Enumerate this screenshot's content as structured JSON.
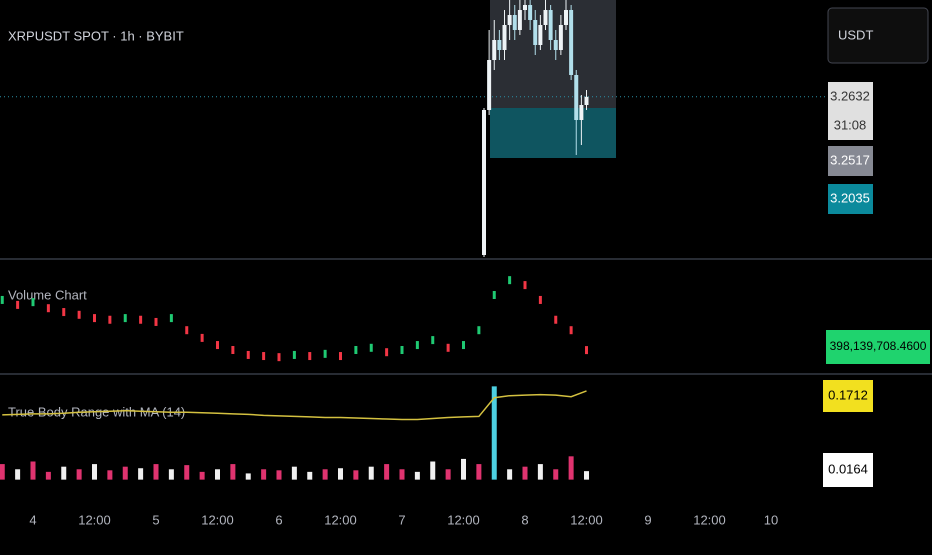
{
  "header": {
    "symbol": "XRPUSDT SPOT · 1h · BYBIT",
    "currency_button": "USDT"
  },
  "price_pane": {
    "ylim": [
      3.102,
      3.36
    ],
    "last_price": 3.2632,
    "countdown": "31:08",
    "price_labels": [
      3.2517,
      3.2035
    ],
    "candles": {
      "open": [
        3.105,
        3.25,
        3.3,
        3.32,
        3.31,
        3.335,
        3.345,
        3.33,
        3.35,
        3.355,
        3.34,
        3.315,
        3.335,
        3.35,
        3.32,
        3.31,
        3.335,
        3.35,
        3.285,
        3.24,
        3.255
      ],
      "high": [
        3.252,
        3.33,
        3.34,
        3.33,
        3.35,
        3.36,
        3.355,
        3.36,
        3.36,
        3.36,
        3.35,
        3.345,
        3.36,
        3.355,
        3.33,
        3.345,
        3.36,
        3.355,
        3.29,
        3.265,
        3.27
      ],
      "low": [
        3.103,
        3.245,
        3.29,
        3.3,
        3.3,
        3.32,
        3.32,
        3.325,
        3.34,
        3.33,
        3.305,
        3.31,
        3.33,
        3.31,
        3.3,
        3.305,
        3.33,
        3.28,
        3.205,
        3.215,
        3.25
      ],
      "close": [
        3.25,
        3.3,
        3.32,
        3.31,
        3.335,
        3.345,
        3.33,
        3.35,
        3.355,
        3.34,
        3.315,
        3.335,
        3.35,
        3.32,
        3.31,
        3.335,
        3.35,
        3.285,
        3.24,
        3.255,
        3.2632
      ]
    },
    "up_color": "#eef3f6",
    "down_color": "#b2dfeb"
  },
  "volume_pane": {
    "title": "Volume Chart",
    "ylim": [
      0,
      2000000000
    ],
    "values": [
      1310000000,
      1220000000,
      1270000000,
      1160000000,
      1090000000,
      1040000000,
      980000000,
      950000000,
      980000000,
      950000000,
      910000000,
      980000000,
      760000000,
      620000000,
      490000000,
      400000000,
      310000000,
      290000000,
      270000000,
      310000000,
      290000000,
      330000000,
      290000000,
      400000000,
      440000000,
      360000000,
      400000000,
      490000000,
      580000000,
      440000000,
      490000000,
      760000000,
      1400000000,
      1670000000,
      1580000000,
      1310000000,
      950000000,
      760000000,
      398139708.46
    ],
    "value_label": "398,139,708.4600",
    "up_color": "#1fca73",
    "down_color": "#f23645"
  },
  "body_pane": {
    "title": "True Body Range with MA (14)",
    "ylim": [
      -0.02,
      0.2
    ],
    "bars": {
      "values": [
        0.03,
        0.02,
        0.035,
        0.015,
        0.025,
        0.02,
        0.03,
        0.018,
        0.025,
        0.022,
        0.03,
        0.02,
        0.028,
        0.015,
        0.02,
        0.03,
        0.012,
        0.02,
        0.018,
        0.025,
        0.015,
        0.02,
        0.022,
        0.018,
        0.025,
        0.03,
        0.02,
        0.015,
        0.035,
        0.02,
        0.04,
        0.03,
        0.18,
        0.02,
        0.025,
        0.03,
        0.02,
        0.045,
        0.0164
      ],
      "colors": [
        "#e0336f",
        "#f0f0f0",
        "#e0336f",
        "#e0336f",
        "#f0f0f0",
        "#e0336f",
        "#f0f0f0",
        "#e0336f",
        "#e0336f",
        "#f0f0f0",
        "#e0336f",
        "#f0f0f0",
        "#e0336f",
        "#e0336f",
        "#f0f0f0",
        "#e0336f",
        "#f0f0f0",
        "#e0336f",
        "#e0336f",
        "#f0f0f0",
        "#f0f0f0",
        "#e0336f",
        "#f0f0f0",
        "#e0336f",
        "#f0f0f0",
        "#e0336f",
        "#e0336f",
        "#f0f0f0",
        "#f0f0f0",
        "#e0336f",
        "#f0f0f0",
        "#e0336f",
        "#4dd0e1",
        "#f0f0f0",
        "#e0336f",
        "#f0f0f0",
        "#e0336f",
        "#e0336f",
        "#f0f0f0"
      ]
    },
    "ma": {
      "values": [
        0.125,
        0.126,
        0.127,
        0.127,
        0.128,
        0.13,
        0.131,
        0.132,
        0.133,
        0.132,
        0.131,
        0.13,
        0.13,
        0.129,
        0.128,
        0.127,
        0.126,
        0.124,
        0.123,
        0.122,
        0.121,
        0.12,
        0.12,
        0.119,
        0.118,
        0.117,
        0.116,
        0.116,
        0.118,
        0.12,
        0.121,
        0.122,
        0.158,
        0.162,
        0.163,
        0.164,
        0.163,
        0.16,
        0.1712
      ],
      "color": "#d4c140"
    }
  },
  "time_axis": {
    "labels": [
      "4",
      "12:00",
      "5",
      "12:00",
      "6",
      "12:00",
      "7",
      "12:00",
      "8",
      "12:00",
      "9",
      "12:00",
      "10"
    ]
  }
}
